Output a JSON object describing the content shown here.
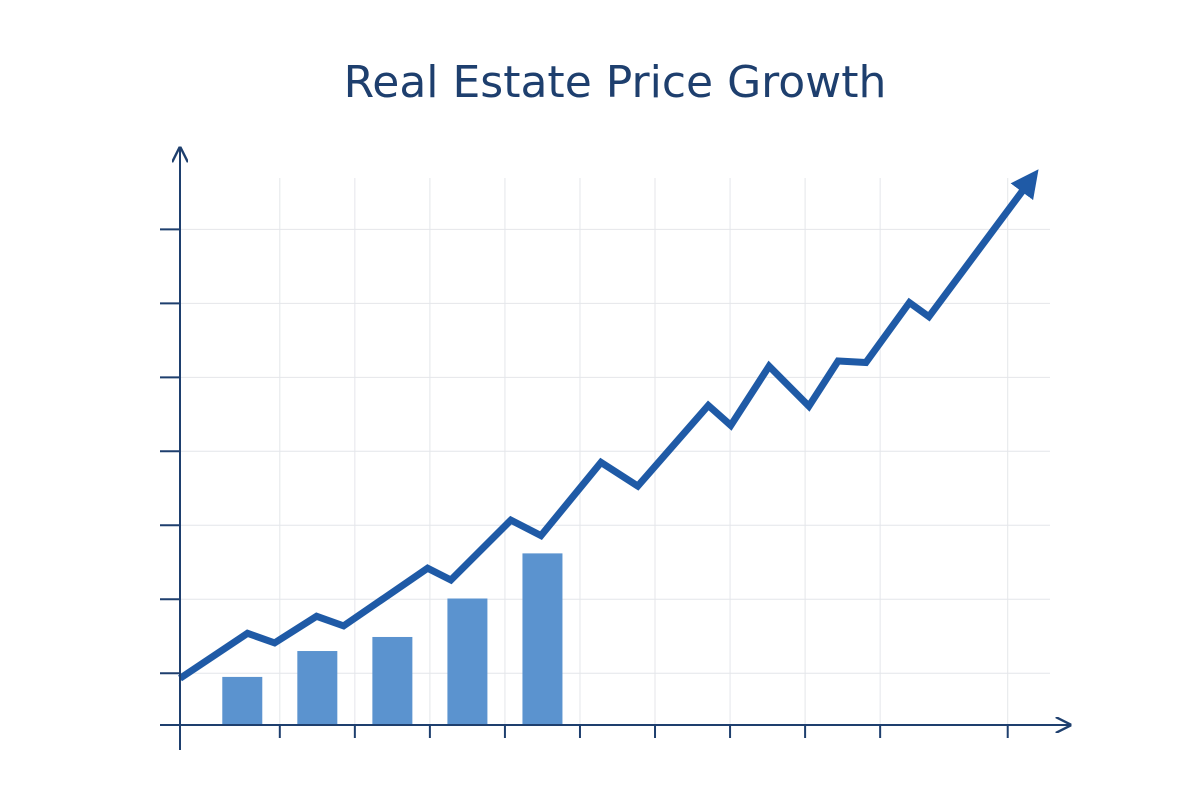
{
  "chart_data": {
    "type": "line-bar",
    "title": "Real Estate Price Growth",
    "xlim": [
      -0.33,
      11.53
    ],
    "ylim": [
      -0.7,
      7.1
    ],
    "xticks": [
      1,
      2,
      3,
      4,
      5,
      6,
      7,
      8,
      9,
      10.7
    ],
    "yticks": [
      0,
      1,
      2,
      3,
      4,
      5,
      6
    ],
    "grid": true,
    "bars": {
      "color": "#5b93cf",
      "x": [
        0.5,
        1.5,
        2.5,
        3.5,
        4.5
      ],
      "values": [
        -0.05,
        0.3,
        0.49,
        1.01,
        1.62
      ]
    },
    "series": [
      {
        "color": "#1f5aa6",
        "x": [
          -0.33,
          0.57,
          0.93,
          1.49,
          1.85,
          2.97,
          3.28,
          4.08,
          4.48,
          5.28,
          5.77,
          6.71,
          7.01,
          7.52,
          8.05,
          8.44,
          8.81,
          9.39,
          9.65,
          11.0
        ],
        "values": [
          -0.07,
          0.54,
          0.41,
          0.77,
          0.64,
          1.42,
          1.26,
          2.07,
          1.86,
          2.85,
          2.53,
          3.62,
          3.35,
          4.15,
          3.61,
          4.22,
          4.2,
          5.01,
          4.82,
          6.66
        ]
      }
    ]
  }
}
